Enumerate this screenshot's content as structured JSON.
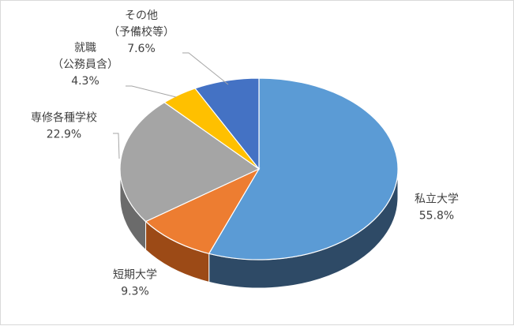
{
  "chart_data": {
    "type": "pie",
    "style": "3d",
    "title": "",
    "slices": [
      {
        "label_lines": [
          "私立大学"
        ],
        "value": "55.8%",
        "percent": 55.8,
        "color": "#5b9bd5",
        "side": "#2e4a66"
      },
      {
        "label_lines": [
          "短期大学"
        ],
        "value": "9.3%",
        "percent": 9.3,
        "color": "#ed7d31",
        "side": "#9c4a16"
      },
      {
        "label_lines": [
          "専修各種学校"
        ],
        "value": "22.9%",
        "percent": 22.9,
        "color": "#a5a5a5",
        "side": "#6b6b6b"
      },
      {
        "label_lines": [
          "就職",
          "（公務員含）"
        ],
        "value": "4.3%",
        "percent": 4.3,
        "color": "#ffc000",
        "side": "#b38600"
      },
      {
        "label_lines": [
          "その他",
          "（予備校等）"
        ],
        "value": "7.6%",
        "percent": 7.6,
        "color": "#4472c4",
        "side": "#2a4680"
      }
    ]
  }
}
